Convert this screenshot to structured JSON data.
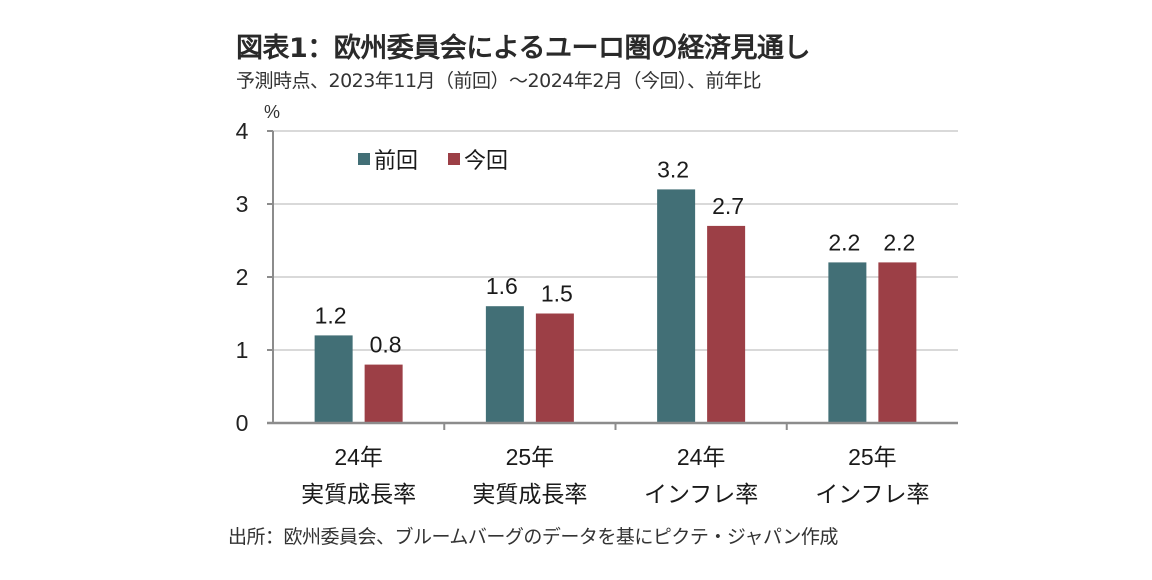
{
  "title": "図表1：欧州委員会によるユーロ圏の経済見通し",
  "subtitle": "予測時点、2023年11月（前回）～2024年2月（今回）、前年比",
  "source": "出所：欧州委員会、ブルームバーグのデータを基にピクテ・ジャパン作成",
  "colors": {
    "previous": "#426F76",
    "current": "#9C3F46",
    "grid": "#D9D9D9",
    "axis": "#8C8C8C"
  },
  "chart_data": {
    "type": "bar",
    "title": "図表1：欧州委員会によるユーロ圏の経済見通し",
    "subtitle": "予測時点、2023年11月（前回）～2024年2月（今回）、前年比",
    "ylabel": "%",
    "xlabel": "",
    "ylim": [
      0,
      4
    ],
    "yticks": [
      "0",
      "1",
      "2",
      "3",
      "4"
    ],
    "grid": true,
    "legend_position": "top-left",
    "categories": [
      {
        "line1": "24年",
        "line2": "実質成長率"
      },
      {
        "line1": "25年",
        "line2": "実質成長率"
      },
      {
        "line1": "24年",
        "line2": "インフレ率"
      },
      {
        "line1": "25年",
        "line2": "インフレ率"
      }
    ],
    "series": [
      {
        "name": "前回",
        "values": [
          1.2,
          1.6,
          3.2,
          2.2
        ],
        "labels": [
          "1.2",
          "1.6",
          "3.2",
          "2.2"
        ]
      },
      {
        "name": "今回",
        "values": [
          0.8,
          1.5,
          2.7,
          2.2
        ],
        "labels": [
          "0.8",
          "1.5",
          "2.7",
          "2.2"
        ]
      }
    ]
  }
}
